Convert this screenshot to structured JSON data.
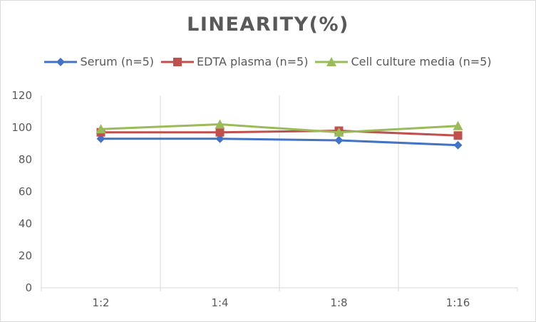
{
  "chart_data": {
    "type": "line",
    "title": "LINEARITY(%)",
    "categories": [
      "1:2",
      "1:4",
      "1:8",
      "1:16"
    ],
    "ylim": [
      0,
      120
    ],
    "yticks": [
      0,
      20,
      40,
      60,
      80,
      100,
      120
    ],
    "grid": "vertical",
    "legend_position": "top",
    "series": [
      {
        "name": "Serum (n=5)",
        "marker": "diamond",
        "color": "#4472c4",
        "values": [
          93,
          93,
          92,
          89
        ]
      },
      {
        "name": "EDTA plasma (n=5)",
        "marker": "square",
        "color": "#c0504d",
        "values": [
          97,
          97,
          98,
          95
        ]
      },
      {
        "name": "Cell culture media (n=5)",
        "marker": "triangle",
        "color": "#9bbb59",
        "values": [
          99,
          102,
          97,
          101
        ]
      }
    ]
  }
}
